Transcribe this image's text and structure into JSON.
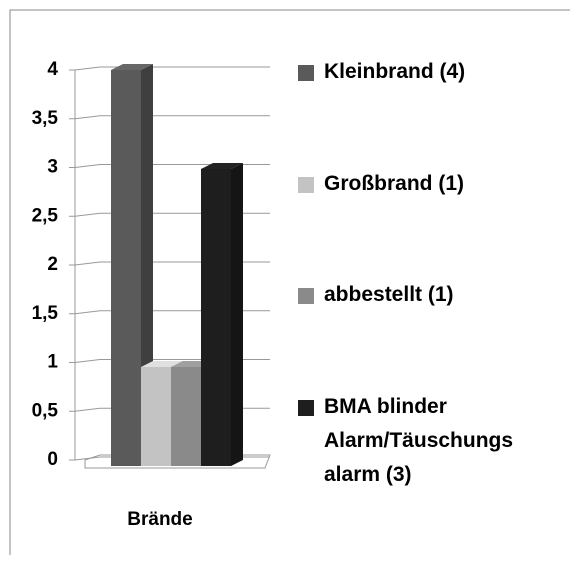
{
  "chart_data": {
    "type": "bar3d",
    "categories": [
      "Brände"
    ],
    "series": [
      {
        "name": "Kleinbrand (4)",
        "color": "#5a5a5a",
        "values": [
          4
        ]
      },
      {
        "name": "Großbrand (1)",
        "color": "#c3c3c3",
        "values": [
          1
        ]
      },
      {
        "name": "abbestellt (1)",
        "color": "#8a8a8a",
        "values": [
          1
        ]
      },
      {
        "name": "BMA blinder Alarm/Täuschungs alarm (3)",
        "color": "#1e1e1e",
        "values": [
          3
        ]
      }
    ],
    "ylim": [
      0,
      4
    ],
    "yticks": [
      0,
      {
        "value": 0.5,
        "label": "0,5"
      },
      1,
      {
        "value": 1.5,
        "label": "1,5"
      },
      2,
      {
        "value": 2.5,
        "label": "2,5"
      },
      3,
      {
        "value": 3.5,
        "label": "3,5"
      },
      4
    ],
    "grid": true,
    "legend": "right"
  }
}
